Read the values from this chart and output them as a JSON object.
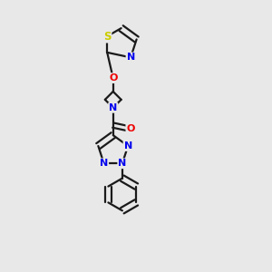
{
  "bg_color": "#e8e8e8",
  "bond_color": "#1a1a1a",
  "atom_colors": {
    "N": "#0000ee",
    "O": "#ee0000",
    "S": "#cccc00",
    "C": "#1a1a1a"
  },
  "bond_width": 1.6,
  "figsize": [
    3.0,
    3.0
  ],
  "dpi": 100,
  "font_size": 8.0
}
